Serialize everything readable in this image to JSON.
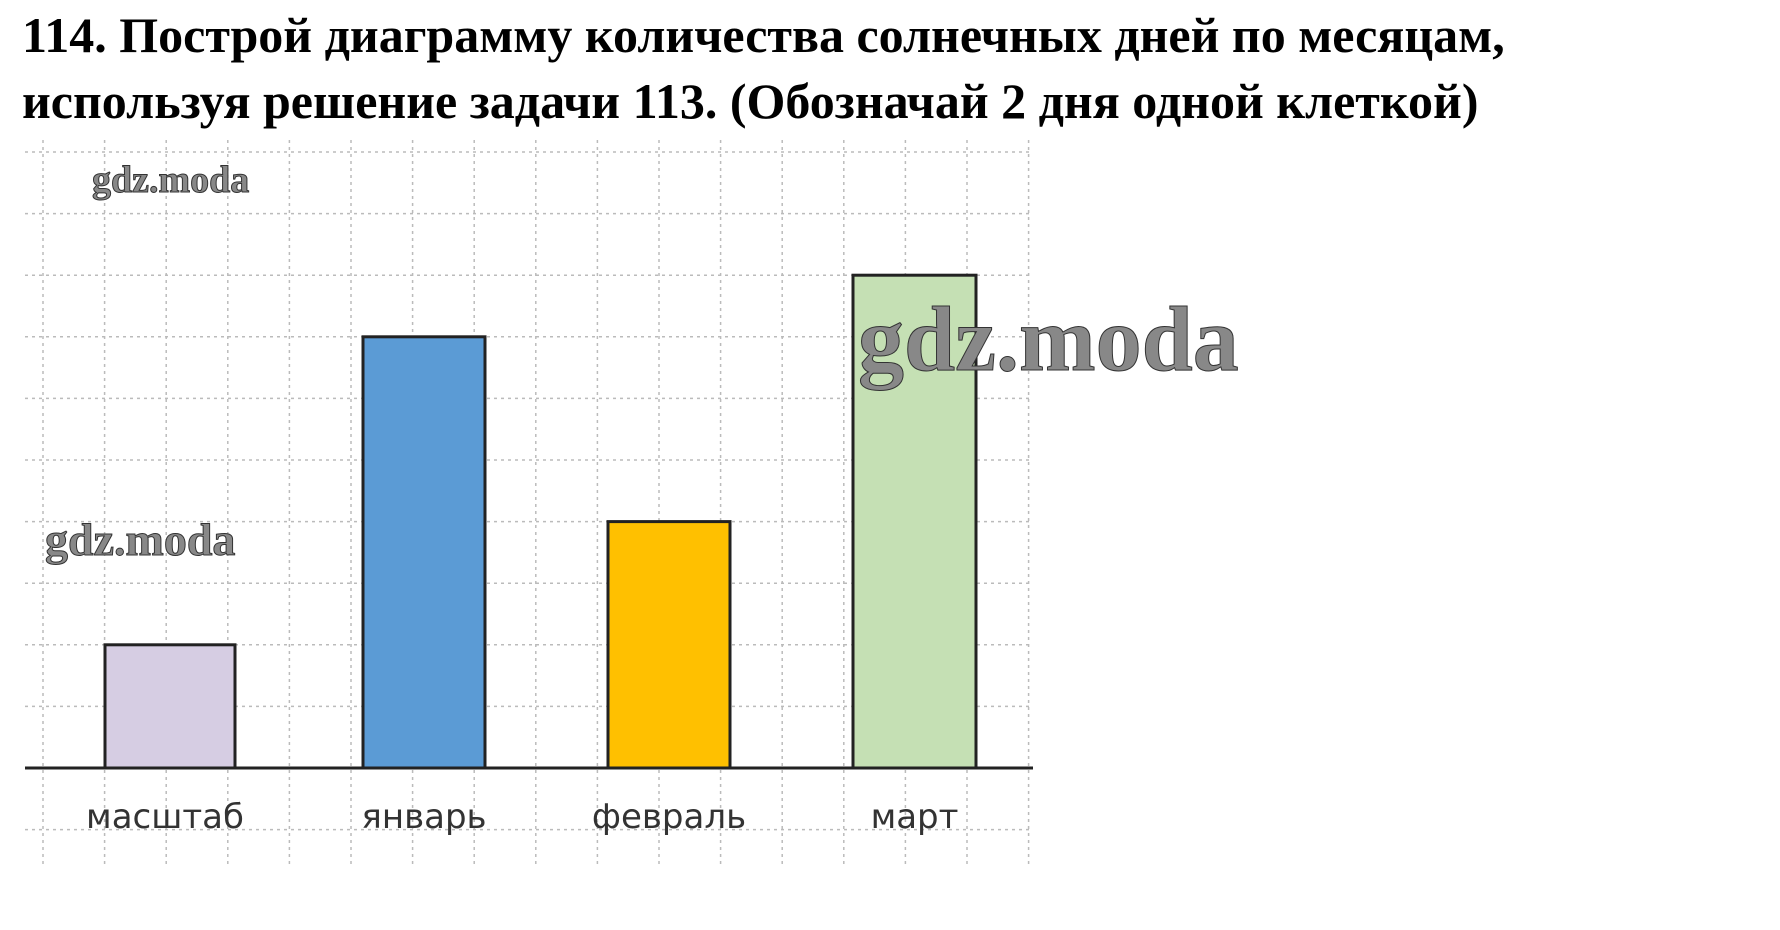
{
  "chart_data": {
    "type": "bar",
    "title": [
      "114. Построй диаграмму количества солнечных дней по месяцам,",
      "используя решение задачи 113. (Обозначай 2 дня одной клеткой)"
    ],
    "categories": [
      "масштаб",
      "январь",
      "февраль",
      "март"
    ],
    "values": [
      4,
      14,
      8,
      16
    ],
    "colors": [
      "#d6cde3",
      "#5b9bd5",
      "#ffc000",
      "#c5e0b4"
    ],
    "ylim": [
      0,
      20
    ],
    "watermarks": [
      "gdz.moda",
      "gdz.moda",
      "gdz.moda"
    ]
  }
}
